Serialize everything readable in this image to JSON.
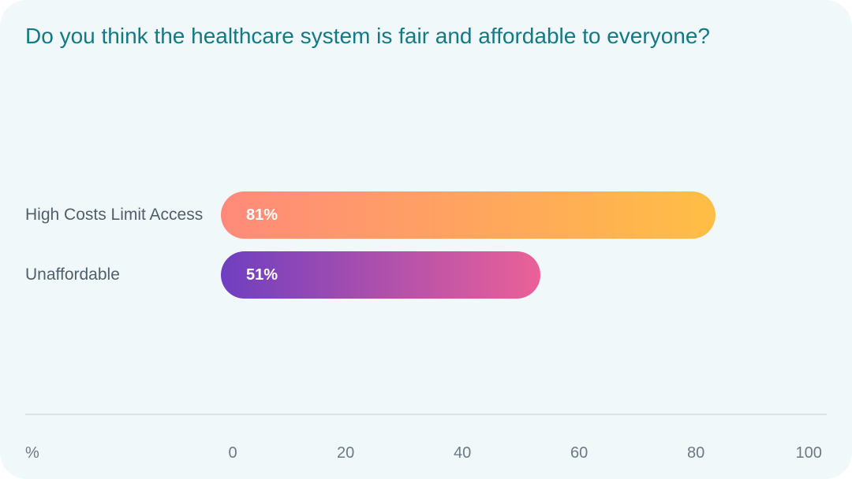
{
  "chart_data": {
    "type": "bar",
    "orientation": "horizontal",
    "title": "Do you think the healthcare system is fair and affordable to everyone?",
    "categories": [
      "High Costs Limit Access",
      "Unaffordable"
    ],
    "values": [
      81,
      51
    ],
    "value_labels": [
      "81%",
      "51%"
    ],
    "xlabel": "%",
    "ylabel": "",
    "xlim": [
      0,
      100
    ],
    "xticks": [
      "0",
      "20",
      "40",
      "60",
      "80",
      "100"
    ],
    "grid": false,
    "bar_gradients": [
      [
        "#ff8a7a",
        "#ffbe45"
      ],
      [
        "#6f3fc0",
        "#eb6198"
      ]
    ]
  }
}
